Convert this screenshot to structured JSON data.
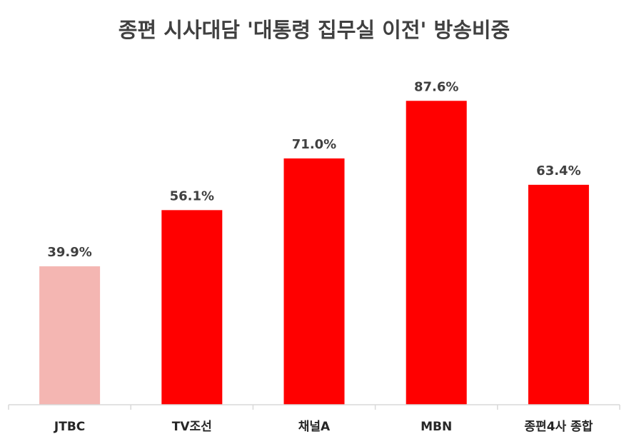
{
  "chart_data": {
    "type": "bar",
    "title": "종편 시사대담 '대통령 집무실 이전' 방송비중",
    "xlabel": "",
    "ylabel": "",
    "categories": [
      "JTBC",
      "TV조선",
      "채널A",
      "MBN",
      "종편4사 종합"
    ],
    "values": [
      39.9,
      56.1,
      71.0,
      87.6,
      63.4
    ],
    "value_labels": [
      "39.9%",
      "56.1%",
      "71.0%",
      "87.6%",
      "63.4%"
    ],
    "colors": [
      "#F4B6B2",
      "#FF0000",
      "#FF0000",
      "#FF0000",
      "#FF0000"
    ],
    "ylim": [
      0,
      100
    ],
    "grid": false,
    "legend": "none"
  }
}
